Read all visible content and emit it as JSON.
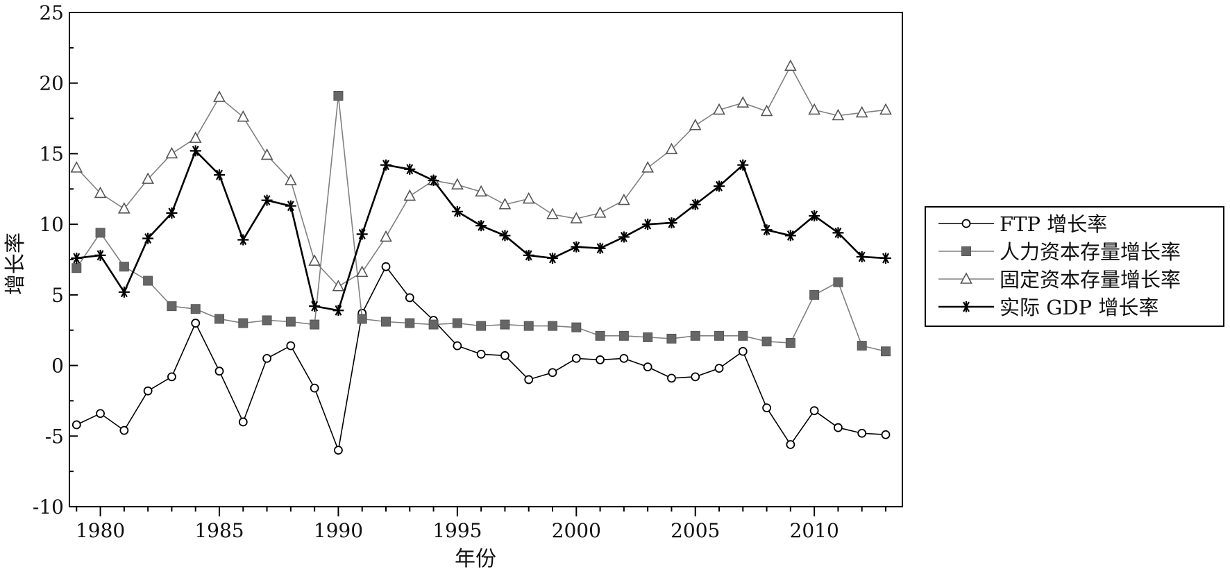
{
  "chart_data": {
    "type": "line",
    "title": "",
    "xlabel": "年份",
    "ylabel": "增长率",
    "xlim": [
      1978.7,
      2013.7
    ],
    "ylim": [
      -10,
      25
    ],
    "x_ticks": [
      1980,
      1985,
      1990,
      1995,
      2000,
      2005,
      2010
    ],
    "y_ticks": [
      -10,
      -5,
      0,
      5,
      10,
      15,
      20,
      25
    ],
    "legend_position": "right",
    "grid": false,
    "x": [
      1979,
      1980,
      1981,
      1982,
      1983,
      1984,
      1985,
      1986,
      1987,
      1988,
      1989,
      1990,
      1991,
      1992,
      1993,
      1994,
      1995,
      1996,
      1997,
      1998,
      1999,
      2000,
      2001,
      2002,
      2003,
      2004,
      2005,
      2006,
      2007,
      2008,
      2009,
      2010,
      2011,
      2012,
      2013
    ],
    "series": [
      {
        "name": "FTP 增长率",
        "marker": "circle",
        "color": "#000000",
        "values": [
          -4.2,
          -3.4,
          -4.6,
          -1.8,
          -0.8,
          3.0,
          -0.4,
          -4.0,
          0.5,
          1.4,
          -1.6,
          -6.0,
          3.7,
          7.0,
          4.8,
          3.2,
          1.4,
          0.8,
          0.7,
          -1.0,
          -0.5,
          0.5,
          0.4,
          0.5,
          -0.1,
          -0.9,
          -0.8,
          -0.2,
          1.0,
          -3.0,
          -5.6,
          -3.2,
          -4.4,
          -4.8,
          -4.9
        ]
      },
      {
        "name": "人力资本存量增长率",
        "marker": "square",
        "color": "#808080",
        "values": [
          6.9,
          9.4,
          7.0,
          6.0,
          4.2,
          4.0,
          3.3,
          3.0,
          3.2,
          3.1,
          2.9,
          19.1,
          3.3,
          3.1,
          3.0,
          2.9,
          3.0,
          2.8,
          2.9,
          2.8,
          2.8,
          2.7,
          2.1,
          2.1,
          2.0,
          1.9,
          2.1,
          2.1,
          2.1,
          1.7,
          1.6,
          5.0,
          5.9,
          1.4,
          1.0
        ]
      },
      {
        "name": "固定资本存量增长率",
        "marker": "triangle",
        "color": "#808080",
        "values": [
          14.0,
          12.2,
          11.1,
          13.2,
          15.0,
          16.1,
          19.0,
          17.6,
          14.9,
          13.1,
          7.4,
          5.6,
          6.6,
          9.1,
          12.0,
          13.1,
          12.8,
          12.3,
          11.4,
          11.8,
          10.7,
          10.4,
          10.8,
          11.7,
          14.0,
          15.3,
          17.0,
          18.1,
          18.6,
          18.0,
          21.2,
          18.1,
          17.7,
          17.9,
          18.1
        ]
      },
      {
        "name": "实际 GDP 增长率",
        "marker": "star",
        "color": "#000000",
        "values": [
          7.6,
          7.8,
          5.2,
          9.0,
          10.8,
          15.2,
          13.5,
          8.9,
          11.7,
          11.3,
          4.2,
          3.9,
          9.3,
          14.2,
          13.9,
          13.1,
          10.9,
          9.9,
          9.2,
          7.8,
          7.6,
          8.4,
          8.3,
          9.1,
          10.0,
          10.1,
          11.4,
          12.7,
          14.2,
          9.6,
          9.2,
          10.6,
          9.4,
          7.7,
          7.6
        ]
      }
    ]
  }
}
